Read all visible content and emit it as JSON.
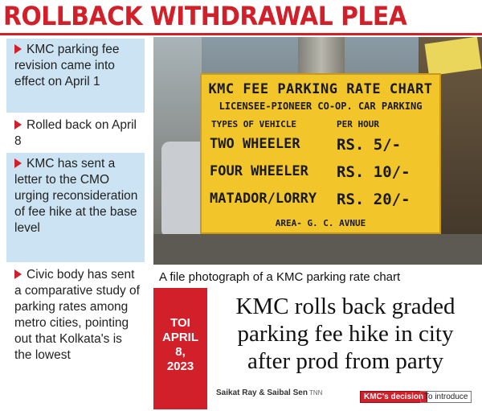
{
  "header": {
    "title": "ROLLBACK WITHDRAWAL PLEA"
  },
  "bullets": [
    "KMC parking fee revision came into effect on April 1",
    "Rolled back on April 8",
    "KMC has sent a letter to the CMO urging reconsideration of fee hike at the base level",
    "Civic body has sent a comparative study of parking rates among metro cities, pointing out that Kolkata's is the lowest"
  ],
  "photo": {
    "board": {
      "title": "KMC FEE PARKING RATE CHART",
      "licensee": "LICENSEE-PIONEER CO-OP. CAR PARKING",
      "types_header": "TYPES OF VEHICLE",
      "rate_header": "PER HOUR",
      "rows": [
        {
          "vehicle": "TWO WHEELER",
          "rate": "RS. 5/-"
        },
        {
          "vehicle": "FOUR WHEELER",
          "rate": "RS. 10/-"
        },
        {
          "vehicle": "MATADOR/LORRY",
          "rate": "RS. 20/-"
        }
      ],
      "area": "AREA- G. C. AVNUE"
    },
    "caption": "A file photograph of a KMC parking rate chart"
  },
  "dateline": {
    "source": "TOI",
    "month": "APRIL",
    "day": "8,",
    "year": "2023"
  },
  "clip": {
    "headline": "KMC rolls back graded parking fee hike in city after prod from party",
    "byline": "Saikat Ray & Saibal Sen",
    "agency": "TNN",
    "badge": "KMC's decision",
    "teaser": "To introduce"
  },
  "colors": {
    "accent": "#d1202a",
    "bullet_bg": "#cbe3f2",
    "board": "#f2c52a"
  }
}
